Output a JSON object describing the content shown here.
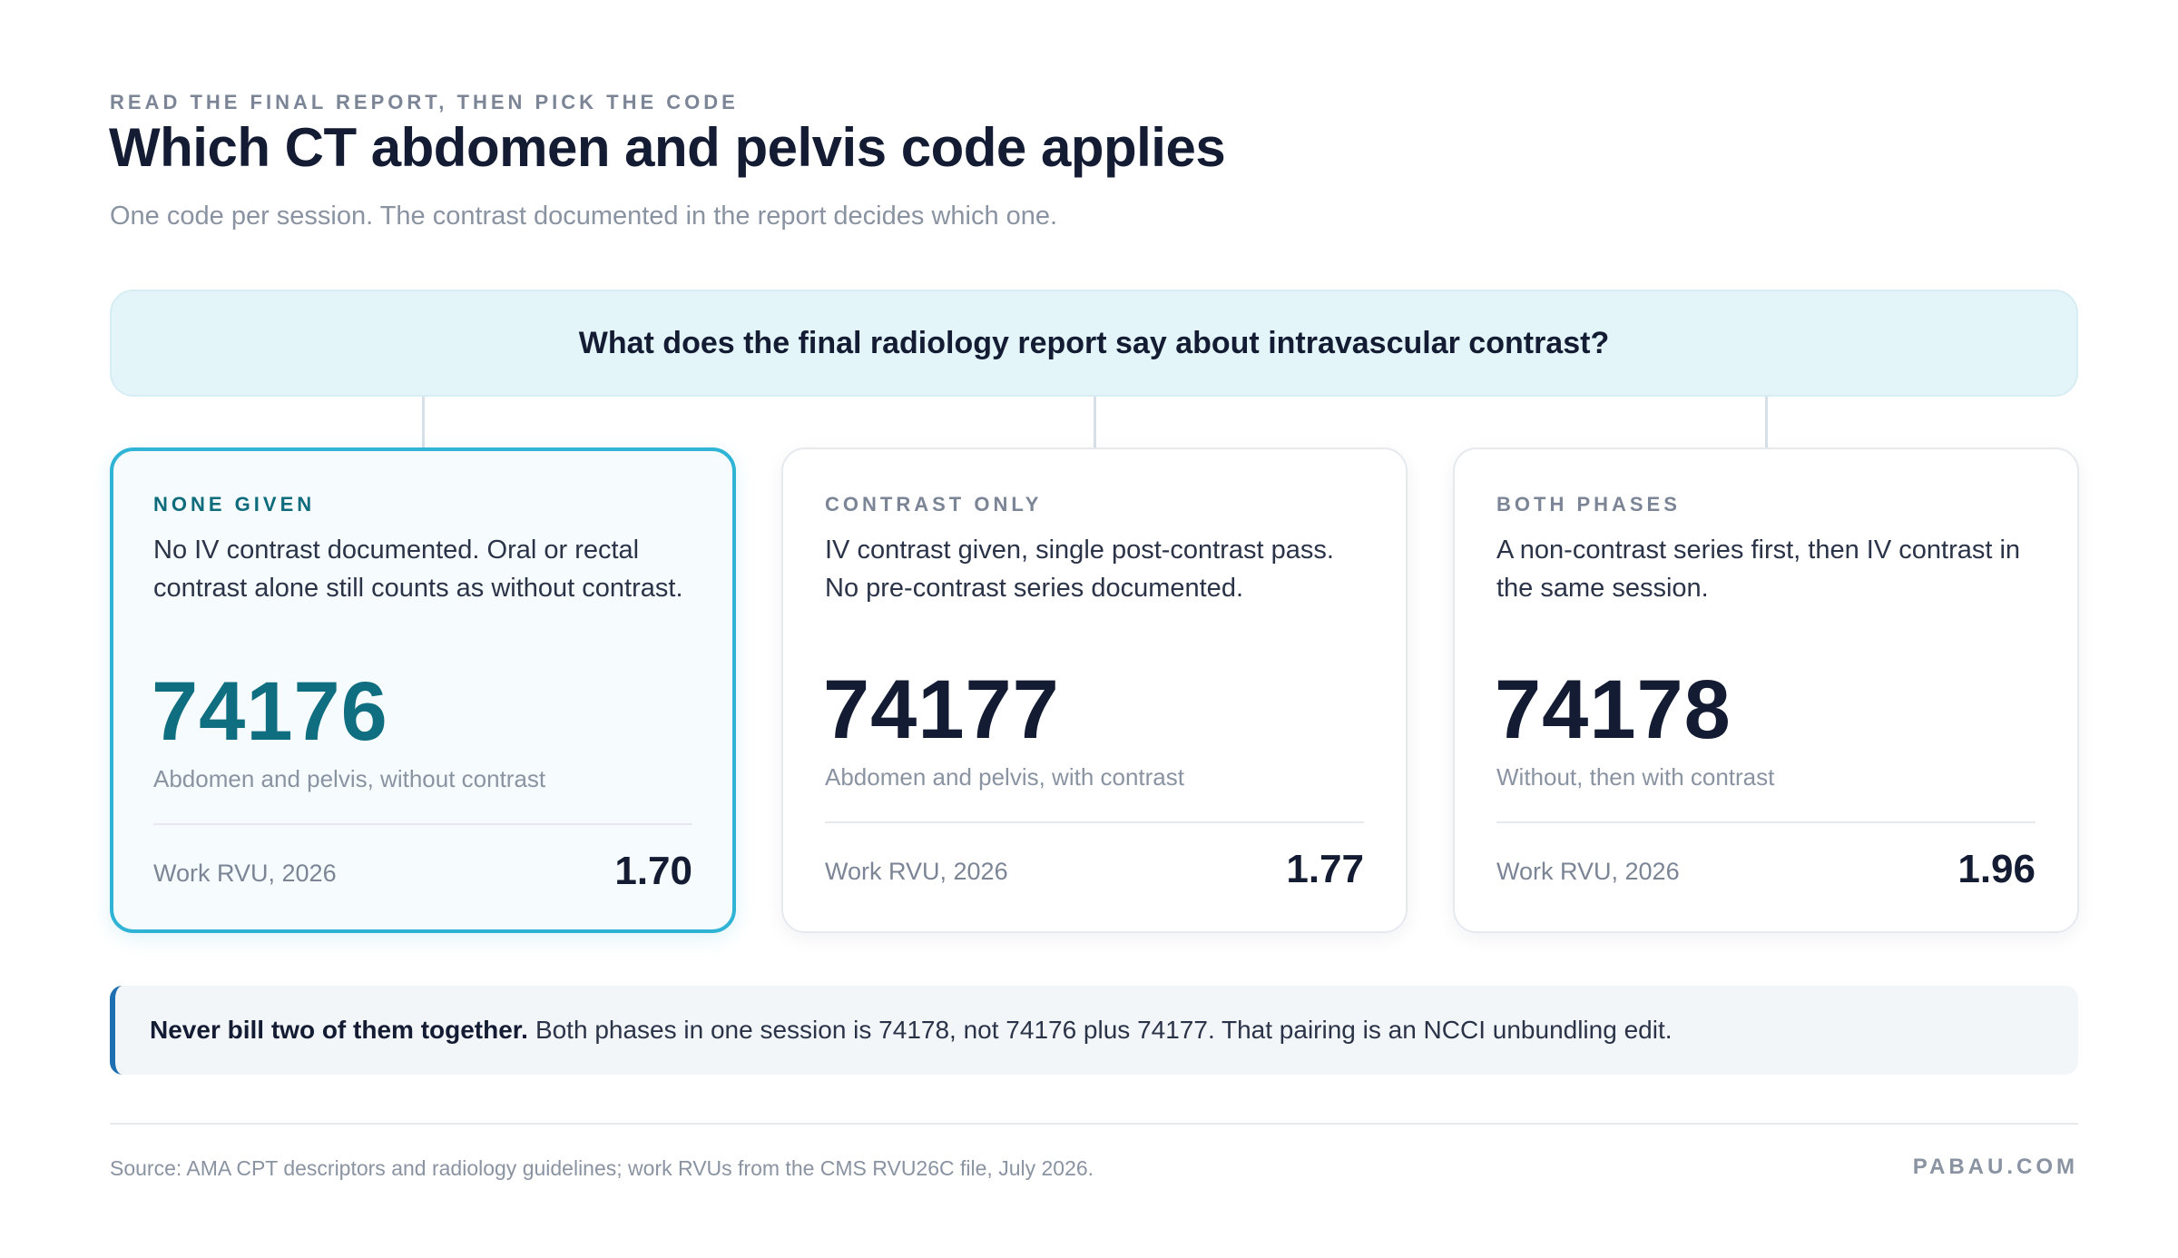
{
  "header": {
    "eyebrow": "READ THE FINAL REPORT, THEN PICK THE CODE",
    "title": "Which CT abdomen and pelvis code applies",
    "subtitle": "One code per session. The contrast documented in the report decides which one."
  },
  "question": "What does the final radiology report say about intravascular contrast?",
  "options": [
    {
      "label": "NONE GIVEN",
      "description": "No IV contrast documented. Oral or rectal contrast alone still counts as without contrast.",
      "code": "74176",
      "code_description": "Abdomen and pelvis, without contrast",
      "rvu_label": "Work RVU, 2026",
      "rvu_value": "1.70",
      "selected": true
    },
    {
      "label": "CONTRAST ONLY",
      "description": "IV contrast given, single post-contrast pass. No pre-contrast series documented.",
      "code": "74177",
      "code_description": "Abdomen and pelvis, with contrast",
      "rvu_label": "Work RVU, 2026",
      "rvu_value": "1.77",
      "selected": false
    },
    {
      "label": "BOTH PHASES",
      "description": "A non-contrast series first, then IV contrast in the same session.",
      "code": "74178",
      "code_description": "Without, then with contrast",
      "rvu_label": "Work RVU, 2026",
      "rvu_value": "1.96",
      "selected": false
    }
  ],
  "note": {
    "bold": "Never bill two of them together.",
    "text": "Both phases in one session is 74178, not 74176 plus 74177. That pairing is an NCCI unbundling edit."
  },
  "footer": {
    "source": "Source: AMA CPT descriptors and radiology guidelines; work RVUs from the CMS RVU26C file, July 2026.",
    "brand": "PABAU.COM"
  },
  "colors": {
    "accent": "#2fb4d6",
    "selected_code": "#0f6e80",
    "note_bar": "#1d6fb2",
    "question_bg": "#e4f5f9"
  }
}
